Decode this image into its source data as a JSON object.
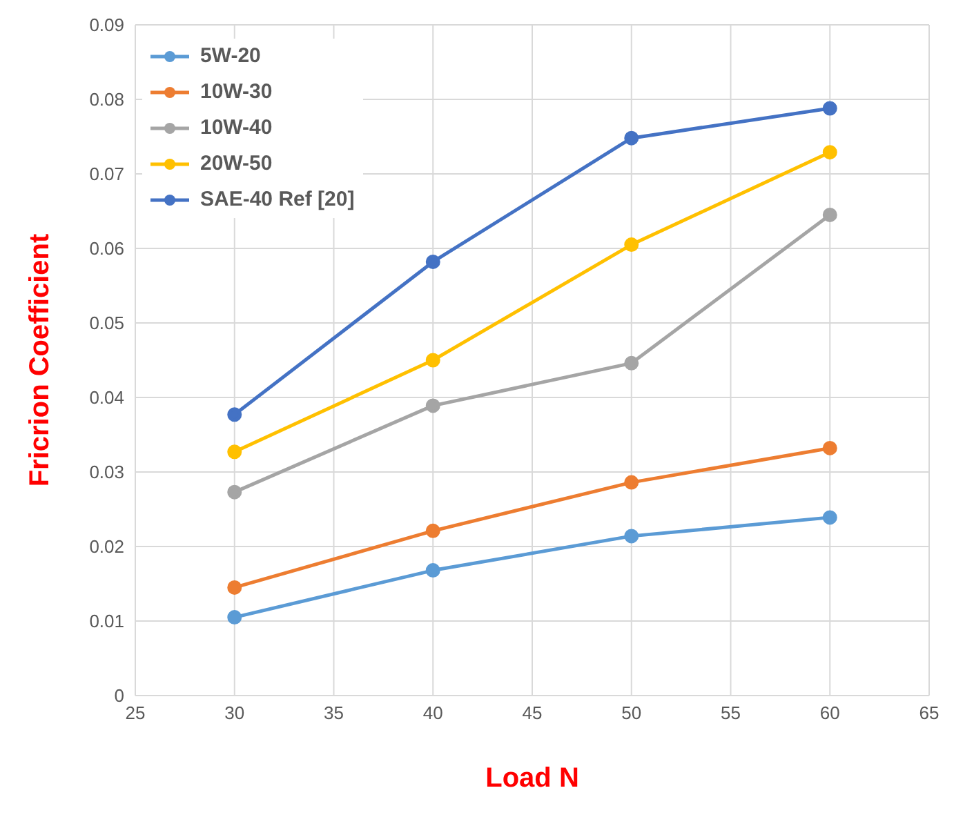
{
  "chart_data": {
    "type": "line",
    "xlabel": "Load N",
    "ylabel": "Fricrion Coefficient",
    "x": [
      30,
      40,
      50,
      60
    ],
    "series": [
      {
        "name": "5W-20",
        "color": "#5b9bd5",
        "values": [
          0.0105,
          0.0168,
          0.0214,
          0.0239
        ]
      },
      {
        "name": "10W-30",
        "color": "#ed7d31",
        "values": [
          0.0145,
          0.0221,
          0.0286,
          0.0332
        ]
      },
      {
        "name": "10W-40",
        "color": "#a5a5a5",
        "values": [
          0.0273,
          0.0389,
          0.0446,
          0.0645
        ]
      },
      {
        "name": "20W-50",
        "color": "#ffc000",
        "values": [
          0.0327,
          0.045,
          0.0605,
          0.0729
        ]
      },
      {
        "name": "SAE-40 Ref [20]",
        "color": "#4472c4",
        "values": [
          0.0377,
          0.0582,
          0.0748,
          0.0788
        ]
      }
    ],
    "xlim": [
      25,
      65
    ],
    "xticks": [
      25,
      30,
      35,
      40,
      45,
      50,
      55,
      60,
      65
    ],
    "ylim": [
      0,
      0.09
    ],
    "yticks": [
      0,
      0.01,
      0.02,
      0.03,
      0.04,
      0.05,
      0.06,
      0.07,
      0.08,
      0.09
    ],
    "grid": true,
    "legend": "top left",
    "marker": "circle",
    "line_style": "solid"
  }
}
